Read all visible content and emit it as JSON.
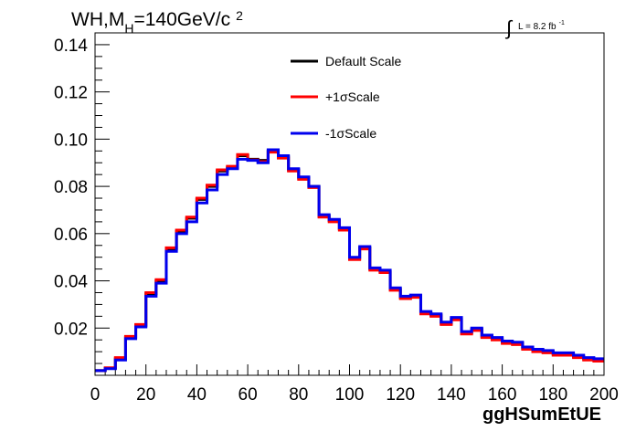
{
  "chart_data": {
    "type": "line",
    "title_main": "WH,M",
    "title_sub": "H",
    "title_rest": "=140GeV/c",
    "title_sup": "2",
    "lumi_integral": "∫",
    "lumi_text": "L = 8.2 fb",
    "lumi_sup": "-1",
    "xlabel": "ggHSumEtUE",
    "ylabel": "",
    "xlim": [
      0,
      200
    ],
    "ylim": [
      0,
      0.145
    ],
    "bin_width": 4,
    "xticks": [
      "0",
      "20",
      "40",
      "60",
      "80",
      "100",
      "120",
      "140",
      "160",
      "180",
      "200"
    ],
    "yticks": [
      "0.02",
      "0.04",
      "0.06",
      "0.08",
      "0.10",
      "0.12",
      "0.14"
    ],
    "legend": {
      "position": "top-center",
      "entries": [
        "Default Scale",
        "+1σScale",
        "-1σScale"
      ]
    },
    "series": [
      {
        "name": "Default Scale",
        "color": "#000000",
        "values": [
          0.002,
          0.003,
          0.007,
          0.016,
          0.021,
          0.0345,
          0.04,
          0.0535,
          0.061,
          0.0665,
          0.0745,
          0.08,
          0.0865,
          0.088,
          0.093,
          0.0915,
          0.091,
          0.095,
          0.0925,
          0.087,
          0.0835,
          0.08,
          0.0675,
          0.0655,
          0.062,
          0.0495,
          0.054,
          0.045,
          0.044,
          0.0365,
          0.033,
          0.0335,
          0.0265,
          0.0255,
          0.022,
          0.024,
          0.018,
          0.0195,
          0.0165,
          0.0155,
          0.014,
          0.0135,
          0.0115,
          0.0105,
          0.01,
          0.009,
          0.009,
          0.008,
          0.007,
          0.0065
        ]
      },
      {
        "name": "+1σScale",
        "color": "#ff0000",
        "values": [
          0.002,
          0.0032,
          0.0075,
          0.0165,
          0.0215,
          0.035,
          0.0405,
          0.054,
          0.0615,
          0.067,
          0.075,
          0.0805,
          0.087,
          0.0885,
          0.0935,
          0.0912,
          0.0905,
          0.0945,
          0.092,
          0.0865,
          0.083,
          0.0795,
          0.067,
          0.065,
          0.0615,
          0.049,
          0.0535,
          0.0445,
          0.0435,
          0.036,
          0.0325,
          0.033,
          0.026,
          0.025,
          0.0215,
          0.0235,
          0.0175,
          0.019,
          0.016,
          0.015,
          0.0135,
          0.013,
          0.011,
          0.01,
          0.0095,
          0.0085,
          0.0085,
          0.0075,
          0.0065,
          0.006
        ]
      },
      {
        "name": "-1σScale",
        "color": "#0000ee",
        "values": [
          0.002,
          0.0028,
          0.0065,
          0.0155,
          0.0205,
          0.0335,
          0.039,
          0.0525,
          0.06,
          0.065,
          0.073,
          0.0785,
          0.085,
          0.0875,
          0.0915,
          0.091,
          0.09,
          0.0955,
          0.093,
          0.0875,
          0.084,
          0.08,
          0.068,
          0.066,
          0.0625,
          0.05,
          0.0545,
          0.0455,
          0.0445,
          0.037,
          0.0335,
          0.034,
          0.027,
          0.026,
          0.0225,
          0.0245,
          0.0185,
          0.02,
          0.017,
          0.016,
          0.0145,
          0.014,
          0.012,
          0.011,
          0.0105,
          0.0095,
          0.0095,
          0.0085,
          0.0075,
          0.007
        ]
      }
    ]
  }
}
